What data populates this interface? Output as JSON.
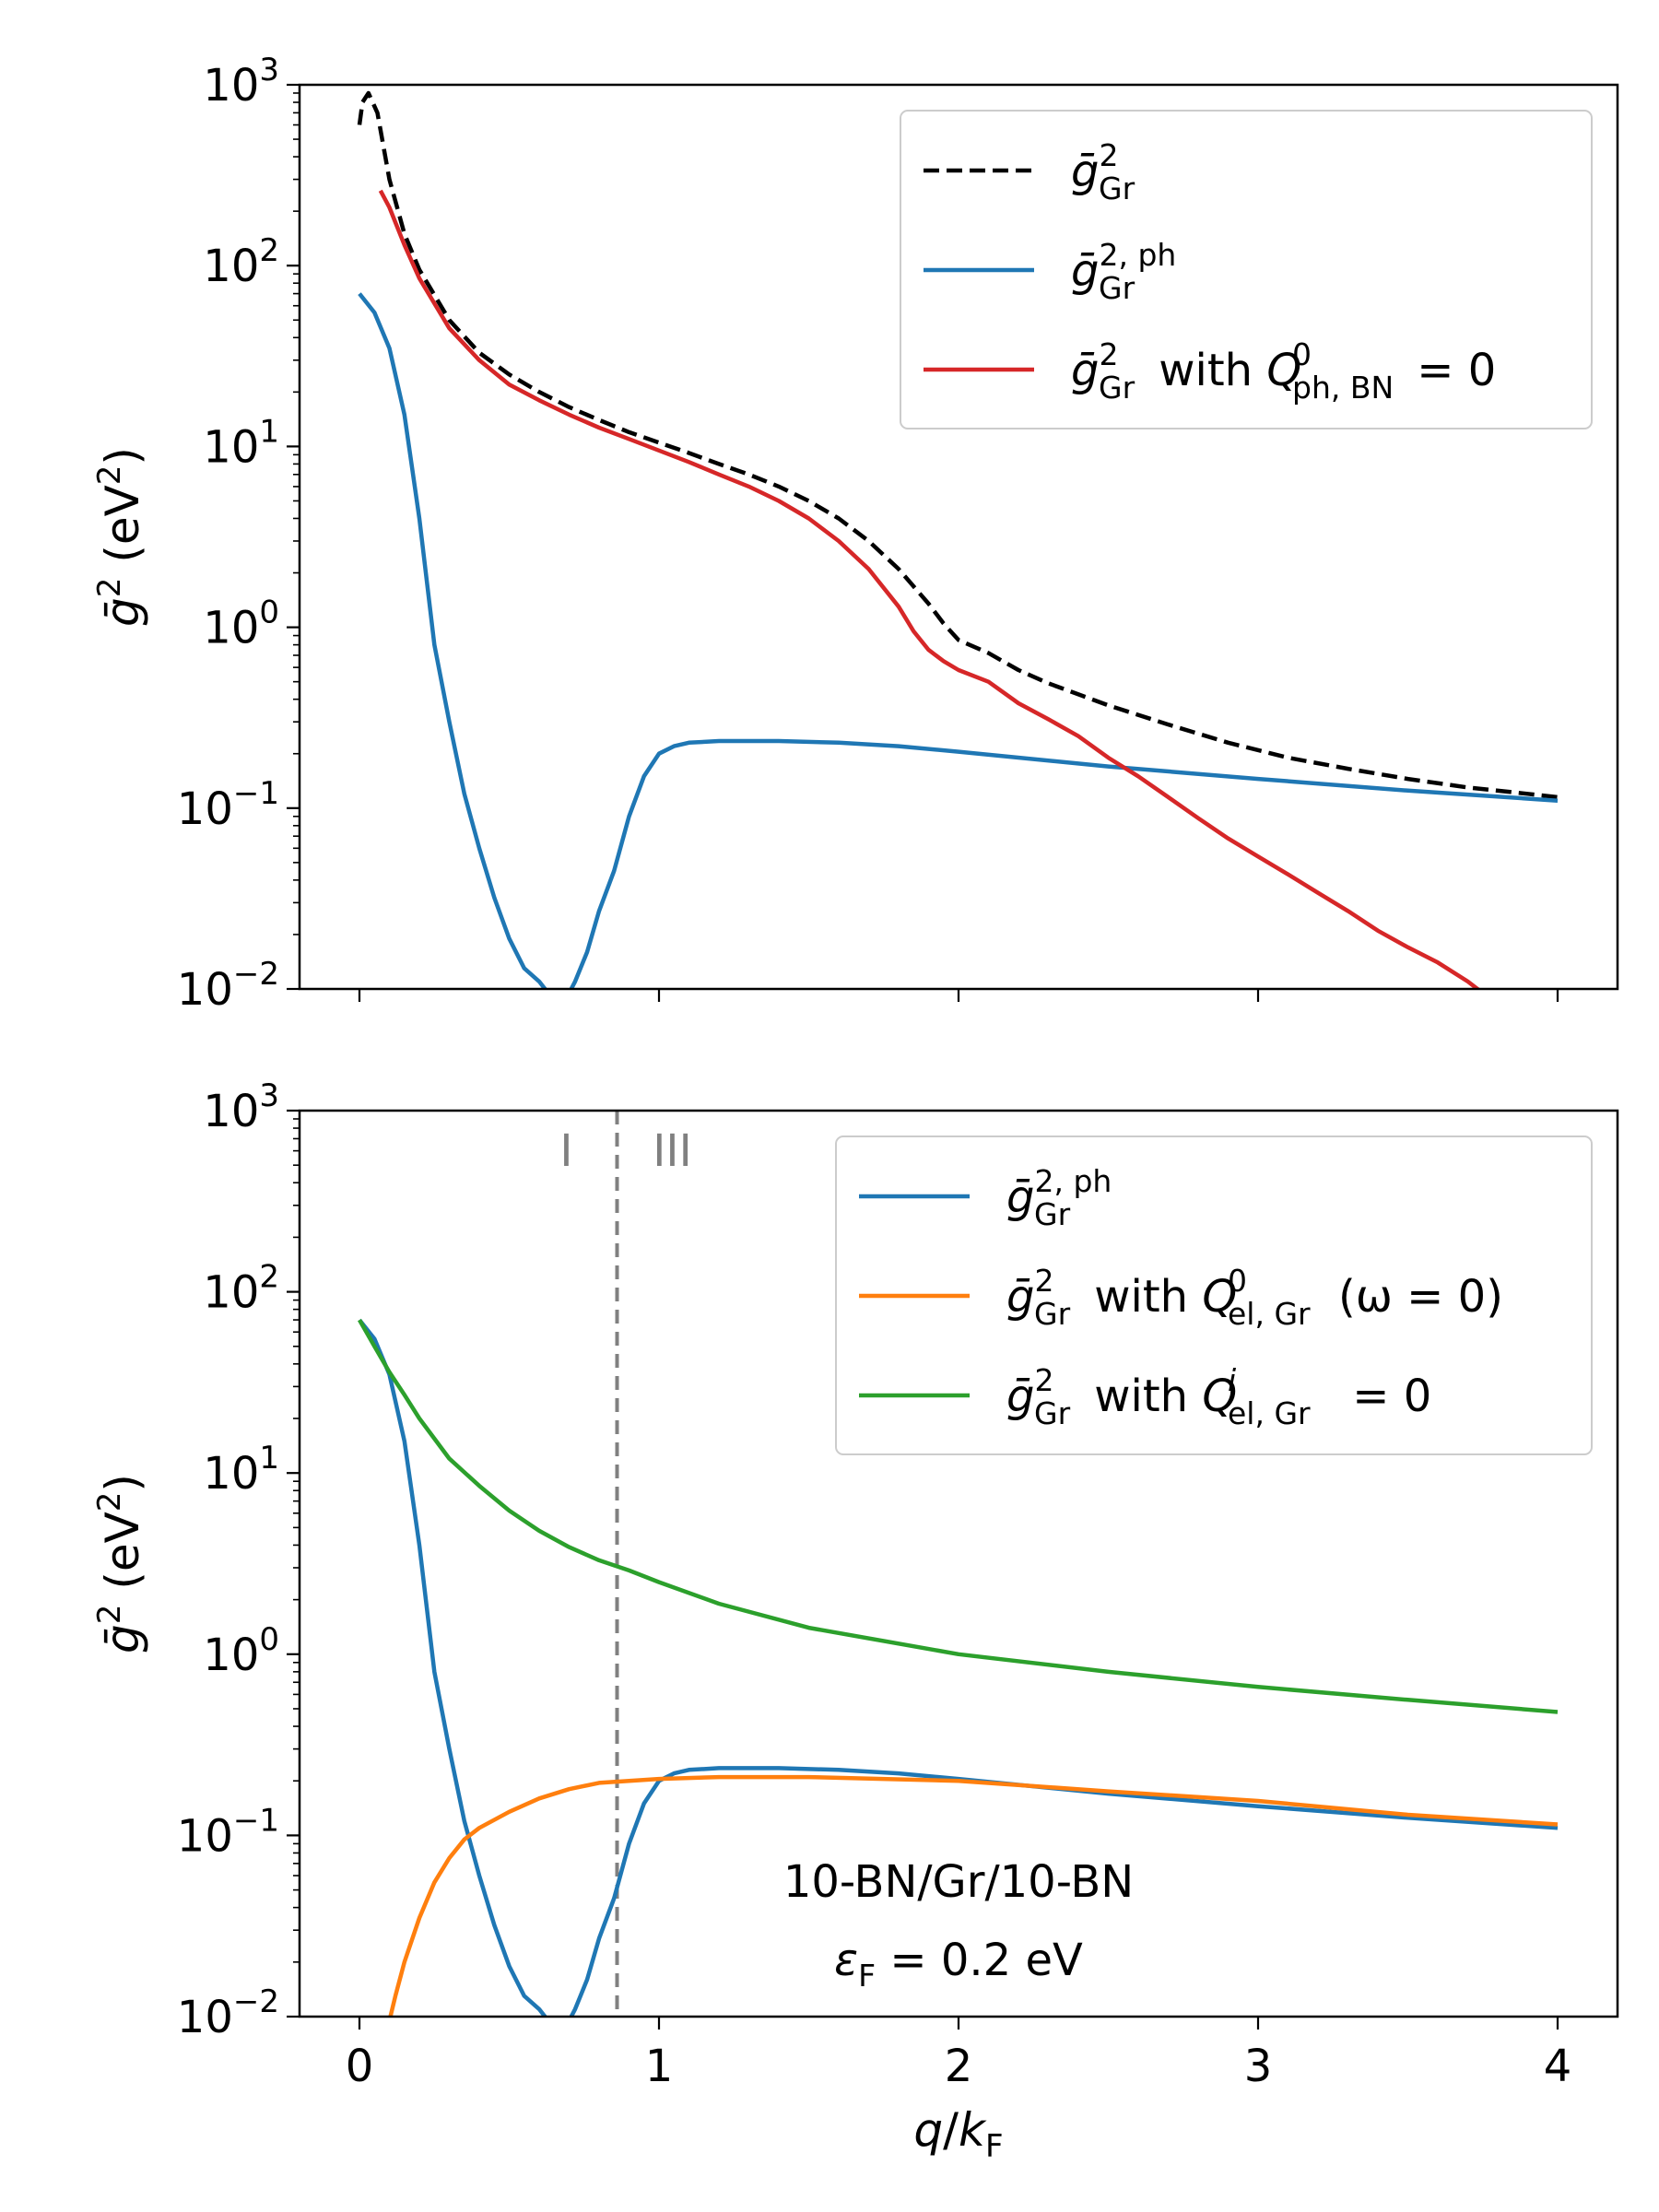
{
  "chart_data": [
    {
      "type": "line",
      "panel": "top",
      "yscale": "log",
      "xlim": [
        -0.2,
        4.2
      ],
      "ylim": [
        0.01,
        1000
      ],
      "xticks": [
        0,
        1,
        2,
        3,
        4
      ],
      "xtick_labels_visible": false,
      "yticks": [
        {
          "value": 1000,
          "base": "10",
          "exp": "3"
        },
        {
          "value": 100,
          "base": "10",
          "exp": "2"
        },
        {
          "value": 10,
          "base": "10",
          "exp": "1"
        },
        {
          "value": 1,
          "base": "10",
          "exp": "0"
        },
        {
          "value": 0.1,
          "base": "10",
          "exp": "−1"
        },
        {
          "value": 0.01,
          "base": "10",
          "exp": "−2"
        }
      ],
      "ylabel": {
        "main": "ḡ",
        "sup": "2",
        "rest": " (eV",
        "rest_sup": "2",
        "close": ")"
      },
      "legend_position": "upper right",
      "series": [
        {
          "name": "ḡ²_Gr",
          "legend": {
            "main": "ḡ",
            "sup": "2",
            "sub": "Gr",
            "rest": ""
          },
          "color": "#000000",
          "dash": "dashed",
          "x": [
            0.0,
            0.01,
            0.03,
            0.06,
            0.1,
            0.15,
            0.2,
            0.3,
            0.4,
            0.5,
            0.6,
            0.7,
            0.8,
            0.9,
            1.0,
            1.1,
            1.2,
            1.3,
            1.4,
            1.5,
            1.6,
            1.7,
            1.8,
            1.9,
            1.95,
            2.0,
            2.1,
            2.2,
            2.3,
            2.5,
            2.7,
            2.9,
            3.1,
            3.3,
            3.5,
            3.7,
            3.9,
            4.0
          ],
          "y": [
            600,
            800,
            900,
            700,
            300,
            150,
            95,
            50,
            33,
            25,
            20,
            16.5,
            14,
            12,
            10.5,
            9.2,
            8.0,
            7.0,
            6.0,
            5.0,
            4.0,
            3.0,
            2.1,
            1.35,
            1.05,
            0.85,
            0.72,
            0.58,
            0.49,
            0.37,
            0.29,
            0.23,
            0.19,
            0.165,
            0.145,
            0.13,
            0.12,
            0.115
          ]
        },
        {
          "name": "ḡ²,ph_Gr",
          "legend": {
            "main": "ḡ",
            "sup": "2, ph",
            "sub": "Gr",
            "rest": ""
          },
          "color": "#1f77b4",
          "dash": "solid",
          "x": [
            0.0,
            0.05,
            0.1,
            0.15,
            0.2,
            0.25,
            0.3,
            0.35,
            0.4,
            0.45,
            0.5,
            0.55,
            0.6,
            0.63,
            0.66,
            0.7,
            0.72,
            0.76,
            0.8,
            0.85,
            0.9,
            0.95,
            1.0,
            1.05,
            1.1,
            1.2,
            1.4,
            1.6,
            1.8,
            2.0,
            2.5,
            3.0,
            3.5,
            4.0
          ],
          "y": [
            70,
            55,
            35,
            15,
            4,
            0.8,
            0.3,
            0.12,
            0.06,
            0.032,
            0.019,
            0.013,
            0.011,
            0.0095,
            0.0092,
            0.0095,
            0.011,
            0.016,
            0.027,
            0.045,
            0.09,
            0.15,
            0.2,
            0.22,
            0.23,
            0.235,
            0.235,
            0.23,
            0.22,
            0.205,
            0.17,
            0.145,
            0.125,
            0.11
          ]
        },
        {
          "name": "ḡ²_Gr with Q0_ph,BN = 0",
          "legend": {
            "main": "ḡ",
            "sup": "2",
            "sub": "Gr",
            "rest": " with ",
            "q": "Q",
            "q_sup": "0",
            "q_sub": "ph, BN",
            "tail": " = 0"
          },
          "color": "#d62728",
          "dash": "solid",
          "x": [
            0.07,
            0.1,
            0.15,
            0.2,
            0.3,
            0.4,
            0.5,
            0.6,
            0.7,
            0.8,
            0.9,
            1.0,
            1.1,
            1.2,
            1.3,
            1.4,
            1.5,
            1.6,
            1.7,
            1.8,
            1.85,
            1.9,
            1.95,
            2.0,
            2.1,
            2.2,
            2.3,
            2.4,
            2.5,
            2.6,
            2.7,
            2.8,
            2.9,
            3.0,
            3.1,
            3.2,
            3.3,
            3.4,
            3.5,
            3.6,
            3.7,
            3.75
          ],
          "y": [
            260,
            210,
            130,
            85,
            45,
            30,
            22,
            18,
            15,
            12.7,
            11,
            9.5,
            8.2,
            7.0,
            6.0,
            5.0,
            4.0,
            3.0,
            2.1,
            1.3,
            0.95,
            0.75,
            0.65,
            0.58,
            0.5,
            0.38,
            0.31,
            0.25,
            0.19,
            0.15,
            0.115,
            0.088,
            0.068,
            0.054,
            0.043,
            0.034,
            0.027,
            0.021,
            0.017,
            0.014,
            0.011,
            0.0095
          ]
        }
      ]
    },
    {
      "type": "line",
      "panel": "bottom",
      "yscale": "log",
      "xlim": [
        -0.2,
        4.2
      ],
      "ylim": [
        0.01,
        1000
      ],
      "xticks": [
        0,
        1,
        2,
        3,
        4
      ],
      "xtick_labels": [
        "0",
        "1",
        "2",
        "3",
        "4"
      ],
      "yticks": [
        {
          "value": 1000,
          "base": "10",
          "exp": "3"
        },
        {
          "value": 100,
          "base": "10",
          "exp": "2"
        },
        {
          "value": 10,
          "base": "10",
          "exp": "1"
        },
        {
          "value": 1,
          "base": "10",
          "exp": "0"
        },
        {
          "value": 0.1,
          "base": "10",
          "exp": "−1"
        },
        {
          "value": 0.01,
          "base": "10",
          "exp": "−2"
        }
      ],
      "xlabel": {
        "q": "q",
        "slash": "/",
        "k": "k",
        "sub": "F"
      },
      "ylabel": {
        "main": "ḡ",
        "sup": "2",
        "rest": " (eV",
        "rest_sup": "2",
        "close": ")"
      },
      "legend_position": "upper right",
      "vline": {
        "x": 0.86,
        "color": "#808080",
        "dash": "dashed",
        "left_label": "I",
        "right_label": "III"
      },
      "annotation": {
        "line1": "10-BN/Gr/10-BN",
        "line2_sym": "ε",
        "line2_sub": "F",
        "line2_rest": " = 0.2 eV"
      },
      "series": [
        {
          "name": "ḡ²,ph_Gr",
          "legend": {
            "main": "ḡ",
            "sup": "2, ph",
            "sub": "Gr",
            "rest": ""
          },
          "color": "#1f77b4",
          "dash": "solid",
          "x": [
            0.0,
            0.05,
            0.1,
            0.15,
            0.2,
            0.25,
            0.3,
            0.35,
            0.4,
            0.45,
            0.5,
            0.55,
            0.6,
            0.63,
            0.66,
            0.7,
            0.72,
            0.76,
            0.8,
            0.85,
            0.9,
            0.95,
            1.0,
            1.05,
            1.1,
            1.2,
            1.4,
            1.6,
            1.8,
            2.0,
            2.5,
            3.0,
            3.5,
            4.0
          ],
          "y": [
            70,
            55,
            35,
            15,
            4,
            0.8,
            0.3,
            0.12,
            0.06,
            0.032,
            0.019,
            0.013,
            0.011,
            0.0095,
            0.0092,
            0.0095,
            0.011,
            0.016,
            0.027,
            0.045,
            0.09,
            0.15,
            0.2,
            0.22,
            0.23,
            0.235,
            0.235,
            0.23,
            0.22,
            0.205,
            0.17,
            0.145,
            0.125,
            0.11
          ]
        },
        {
          "name": "ḡ²_Gr with Q0_el,Gr(ω=0)",
          "legend": {
            "main": "ḡ",
            "sup": "2",
            "sub": "Gr",
            "rest": " with ",
            "q": "Q",
            "q_sup": "0",
            "q_sub": "el, Gr",
            "tail": "(ω = 0)"
          },
          "color": "#ff7f0e",
          "dash": "solid",
          "x": [
            0.1,
            0.12,
            0.15,
            0.2,
            0.25,
            0.3,
            0.35,
            0.4,
            0.5,
            0.6,
            0.7,
            0.8,
            0.9,
            1.0,
            1.2,
            1.5,
            2.0,
            2.5,
            3.0,
            3.5,
            4.0
          ],
          "y": [
            0.0095,
            0.013,
            0.02,
            0.035,
            0.055,
            0.075,
            0.095,
            0.11,
            0.135,
            0.16,
            0.18,
            0.195,
            0.2,
            0.205,
            0.21,
            0.21,
            0.2,
            0.175,
            0.155,
            0.13,
            0.115
          ]
        },
        {
          "name": "ḡ²_Gr with Qi_el,Gr = 0",
          "legend": {
            "main": "ḡ",
            "sup": "2",
            "sub": "Gr",
            "rest": " with ",
            "q": "Q",
            "q_sup": "i",
            "q_sub": "el, Gr",
            "tail": " = 0"
          },
          "color": "#2ca02c",
          "dash": "solid",
          "x": [
            0.0,
            0.05,
            0.1,
            0.15,
            0.2,
            0.3,
            0.4,
            0.5,
            0.6,
            0.7,
            0.8,
            0.9,
            1.0,
            1.2,
            1.5,
            2.0,
            2.5,
            3.0,
            3.5,
            4.0
          ],
          "y": [
            70,
            50,
            36,
            27,
            20,
            12,
            8.5,
            6.2,
            4.8,
            3.9,
            3.3,
            2.9,
            2.5,
            1.9,
            1.4,
            1.0,
            0.8,
            0.66,
            0.56,
            0.48
          ]
        }
      ]
    }
  ]
}
